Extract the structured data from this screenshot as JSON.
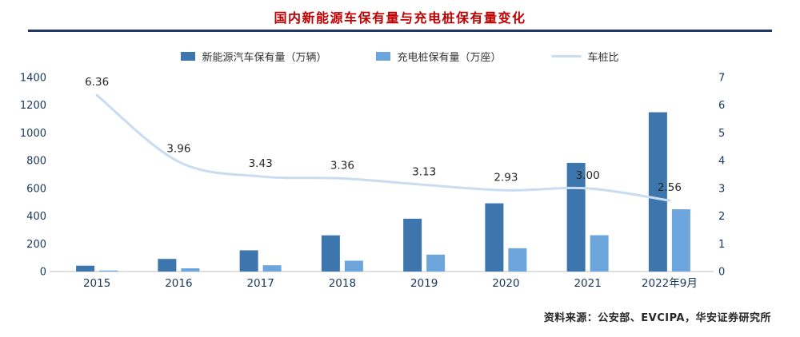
{
  "title": "国内新能源车保有量与充电桩保有量变化",
  "source": "资料来源：公安部、EVCIPA，华安证券研究所",
  "colors": {
    "title": "#C00000",
    "rule": "#1F3864",
    "nev_bar": "#3D76AD",
    "pile_bar": "#6CA6DC",
    "ratio_line": "#C9DCF0",
    "axis_text": "#17375E",
    "axis_line": "#BFBFBF"
  },
  "legend": [
    {
      "label": "新能源汽车保有量（万辆）",
      "type": "bar",
      "color": "#3D76AD"
    },
    {
      "label": "充电桩保有量（万座）",
      "type": "bar",
      "color": "#6CA6DC"
    },
    {
      "label": "车桩比",
      "type": "line",
      "color": "#C9DCF0"
    }
  ],
  "chart_data": {
    "type": "bar",
    "subtype": "bar+line combo, dual axis",
    "title": "国内新能源车保有量与充电桩保有量变化",
    "categories": [
      "2015",
      "2016",
      "2017",
      "2018",
      "2019",
      "2020",
      "2021",
      "2022年9月"
    ],
    "series": [
      {
        "name": "新能源汽车保有量（万辆）",
        "type": "bar",
        "axis": "left",
        "color": "#3D76AD",
        "values": [
          42,
          91,
          153,
          261,
          381,
          492,
          784,
          1149
        ]
      },
      {
        "name": "充电桩保有量（万座）",
        "type": "bar",
        "axis": "left",
        "color": "#6CA6DC",
        "values": [
          7,
          23,
          45,
          78,
          122,
          168,
          262,
          449
        ]
      },
      {
        "name": "车桩比",
        "type": "line",
        "axis": "right",
        "color": "#C9DCF0",
        "values": [
          6.36,
          3.96,
          3.43,
          3.36,
          3.13,
          2.93,
          3.0,
          2.56
        ],
        "labels": [
          "6.36",
          "3.96",
          "3.43",
          "3.36",
          "3.13",
          "2.93",
          "3.00",
          "2.56"
        ]
      }
    ],
    "left_axis": {
      "min": 0,
      "max": 1400,
      "step": 200,
      "ticks": [
        0,
        200,
        400,
        600,
        800,
        1000,
        1200,
        1400
      ]
    },
    "right_axis": {
      "min": 0,
      "max": 7,
      "step": 1,
      "ticks": [
        0,
        1,
        2,
        3,
        4,
        5,
        6,
        7
      ]
    },
    "grid": false,
    "legend_position": "top"
  }
}
